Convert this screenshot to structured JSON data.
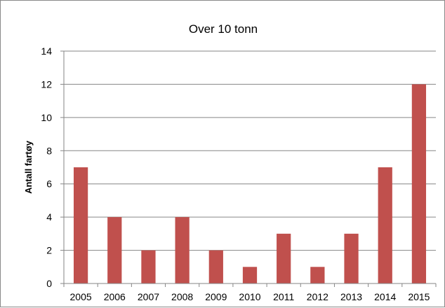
{
  "chart_data": {
    "type": "bar",
    "title": "Over 10 tonn",
    "xlabel": "",
    "ylabel": "Antall fartøy",
    "categories": [
      "2005",
      "2006",
      "2007",
      "2008",
      "2009",
      "2010",
      "2011",
      "2012",
      "2013",
      "2014",
      "2015"
    ],
    "values": [
      7,
      4,
      2,
      4,
      2,
      1,
      3,
      1,
      3,
      7,
      12
    ],
    "ylim": [
      0,
      14
    ],
    "yticks": [
      0,
      2,
      4,
      6,
      8,
      10,
      12,
      14
    ],
    "grid": true,
    "legend": "none",
    "bar_color": "#c0504d"
  }
}
